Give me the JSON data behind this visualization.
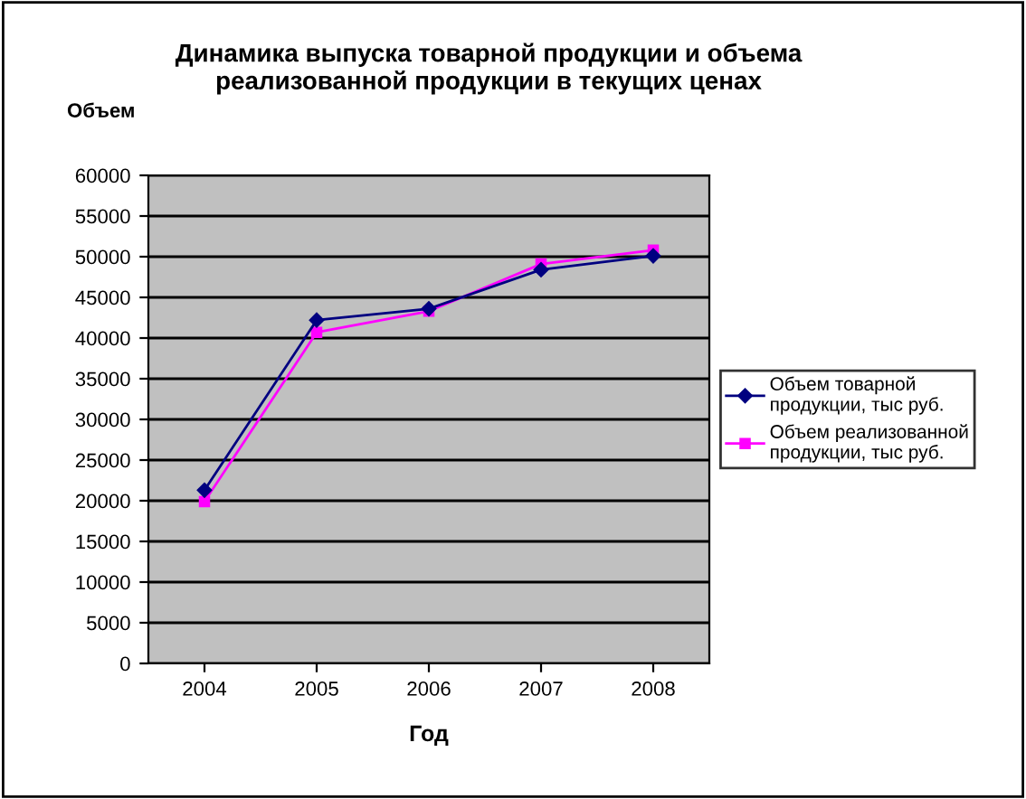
{
  "chart_data": {
    "type": "line",
    "title": "Динамика выпуска товарной продукции и объема\nреализованной продукции в текущих ценах",
    "ylabel": "Объем",
    "xlabel": "Год",
    "categories": [
      "2004",
      "2005",
      "2006",
      "2007",
      "2008"
    ],
    "series": [
      {
        "name": "Объем товарной\nпродукции, тыс руб.",
        "color": "#000080",
        "marker": "diamond",
        "values": [
          21300,
          42200,
          43600,
          48400,
          50100
        ]
      },
      {
        "name": "Объем реализованной\nпродукции, тыс руб.",
        "color": "#ff00ff",
        "marker": "square",
        "values": [
          19900,
          40700,
          43300,
          49100,
          50800
        ]
      }
    ],
    "ylim": [
      0,
      60000
    ],
    "yticks": [
      0,
      5000,
      10000,
      15000,
      20000,
      25000,
      30000,
      35000,
      40000,
      45000,
      50000,
      55000,
      60000
    ],
    "grid": "y",
    "legend": "right",
    "line_style": "solid"
  }
}
